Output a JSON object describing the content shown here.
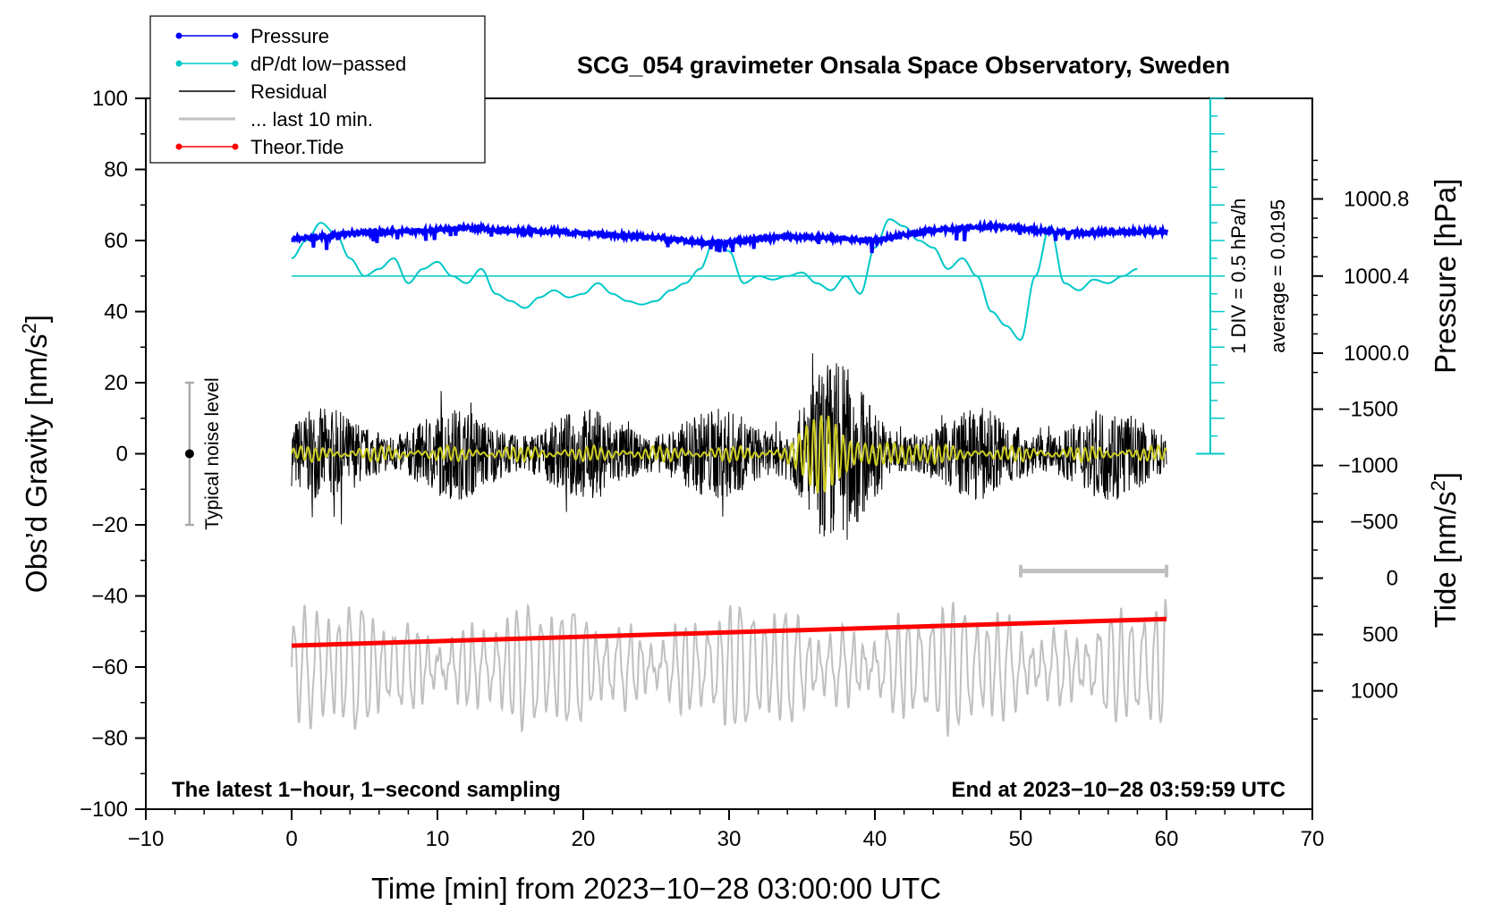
{
  "chart_data": {
    "type": "line",
    "title": "SCG_054 gravimeter Onsala Space Observatory, Sweden",
    "xlabel": "Time [min] from 2023−10−28 03:00:00 UTC",
    "ylabel_left": "Obs’d Gravity [nm/s²]",
    "ylabel_left_main": "Obs’d Gravity [nm/s",
    "ylabel_left_sup": "2",
    "ylabel_left_close": "]",
    "ylabel_pressure": "Pressure [hPa]",
    "ylabel_tide": "Tide [nm/s²]",
    "ylabel_tide_main": "Tide [nm/s",
    "ylabel_tide_sup": "2",
    "ylabel_tide_close": "]",
    "xlim": [
      -10,
      70
    ],
    "ylim": [
      -100,
      100
    ],
    "x_ticks": [
      -10,
      0,
      10,
      20,
      30,
      40,
      50,
      60,
      70
    ],
    "x_tick_labels": [
      "−10",
      "0",
      "10",
      "20",
      "30",
      "40",
      "50",
      "60",
      "70"
    ],
    "y_ticks": [
      100,
      80,
      60,
      40,
      20,
      0,
      -20,
      -40,
      -60,
      -80,
      -100
    ],
    "y_tick_labels": [
      "100",
      "80",
      "60",
      "40",
      "20",
      "0",
      "−20",
      "−40",
      "−60",
      "−80",
      "−100"
    ],
    "pressure_axis": {
      "ticks": [
        1000.8,
        1000.4,
        1000.0
      ],
      "tick_labels": [
        "1000.8",
        "1000.4",
        "1000.0"
      ],
      "gravity_equivalent": [
        71.7,
        50.0,
        28.3
      ]
    },
    "tide_axis": {
      "ticks": [
        1000,
        500,
        0,
        -500,
        -1000,
        -1500
      ],
      "tick_labels": [
        "1000",
        "500",
        "0",
        "−500",
        "−1000",
        "−1500"
      ]
    },
    "legend": {
      "placement": "top-left",
      "entries": [
        {
          "label": "Pressure",
          "color": "#0000ff",
          "marker": true
        },
        {
          "label": "dP/dt low−passed",
          "color": "#00c8c8",
          "marker": true
        },
        {
          "label": "Residual",
          "color": "#000000",
          "marker": false
        },
        {
          "label": "... last 10 min.",
          "color": "#c0c0c0",
          "marker": false
        },
        {
          "label": "Theor.Tide",
          "color": "#ff0000",
          "marker": true
        }
      ]
    },
    "annotations": {
      "bottom_left": "The latest 1−hour, 1−second sampling",
      "bottom_right": "End at 2023−10−28 03:59:59 UTC",
      "div_label": "1 DIV = 0.5 hPa/h",
      "average_label": "average = 0.0195",
      "noise_label": "Typical noise level",
      "noise_range": [
        -20,
        20
      ],
      "div_scale_x": 63,
      "div_scale_y_range": [
        0,
        100
      ],
      "last10_bar_x": [
        50,
        60
      ],
      "last10_bar_y": -33,
      "dpdt_baseline_y": 50
    },
    "series": [
      {
        "name": "Pressure",
        "color": "#0000ff",
        "x": [
          0,
          2,
          4,
          6,
          8,
          10,
          12,
          14,
          16,
          18,
          20,
          22,
          24,
          26,
          28,
          30,
          32,
          34,
          36,
          38,
          40,
          42,
          44,
          46,
          48,
          50,
          52,
          54,
          56,
          58,
          60
        ],
        "y": [
          60.5,
          61,
          62,
          62.5,
          62.5,
          63,
          63.5,
          63,
          62.5,
          62.5,
          62,
          61.5,
          61,
          60.5,
          59.5,
          59.5,
          60.5,
          61,
          61,
          60.5,
          60,
          61.5,
          63,
          63.5,
          64,
          63.5,
          62.5,
          62,
          62.5,
          62.5,
          62.5
        ]
      },
      {
        "name": "dP/dt low−passed",
        "color": "#00c8c8",
        "x": [
          0,
          1,
          2,
          3,
          4,
          5,
          6,
          7,
          8,
          9,
          10,
          11,
          12,
          13,
          14,
          15,
          16,
          17,
          18,
          19,
          20,
          21,
          22,
          23,
          24,
          25,
          26,
          27,
          28,
          29,
          30,
          31,
          32,
          33,
          34,
          35,
          36,
          37,
          38,
          39,
          40,
          41,
          42,
          43,
          44,
          45,
          46,
          47,
          48,
          49,
          50,
          51,
          52,
          53,
          54,
          55,
          56,
          57,
          58
        ],
        "y": [
          55,
          60,
          65,
          62,
          55,
          50,
          52,
          55,
          48,
          52,
          54,
          50,
          48,
          52,
          45,
          43,
          41,
          44,
          46,
          44,
          45,
          48,
          45,
          43,
          42,
          43,
          46,
          48,
          52,
          60,
          57,
          48,
          50,
          49,
          50,
          51,
          48,
          46,
          50,
          45,
          58,
          66,
          64,
          60,
          58,
          52,
          55,
          50,
          40,
          36,
          32,
          50,
          64,
          48,
          46,
          49,
          48,
          50,
          52
        ]
      },
      {
        "name": "Theor.Tide",
        "color": "#ff0000",
        "x": [
          0,
          60
        ],
        "y": [
          -54,
          -46.5
        ]
      }
    ]
  }
}
